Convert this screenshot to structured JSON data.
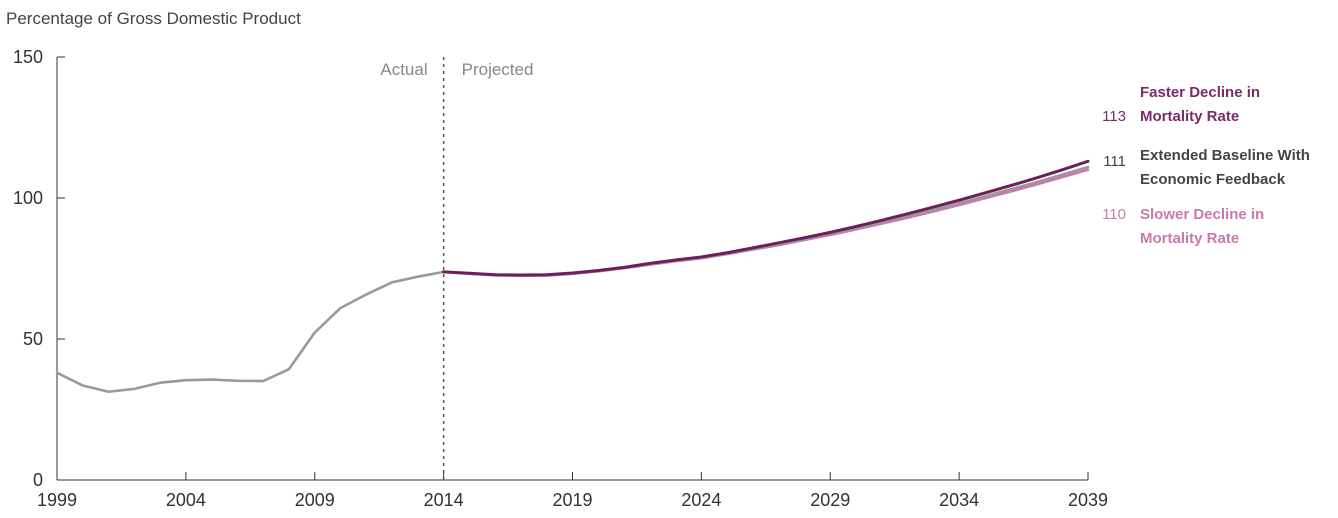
{
  "chart_data": {
    "type": "line",
    "ylabel": "Percentage of Gross Domestic Product",
    "ylim": [
      0,
      150
    ],
    "xlim": [
      1999,
      2039
    ],
    "yticks": [
      0,
      50,
      100,
      150
    ],
    "xticks": [
      1999,
      2004,
      2009,
      2014,
      2019,
      2024,
      2029,
      2034,
      2039
    ],
    "divider": {
      "x": 2014,
      "left_label": "Actual",
      "right_label": "Projected"
    },
    "grid": false,
    "series": [
      {
        "name": "",
        "color": "#9a9a9a",
        "x": [
          1999,
          2000,
          2001,
          2002,
          2003,
          2004,
          2005,
          2006,
          2007,
          2008,
          2009,
          2010,
          2011,
          2012,
          2013,
          2014
        ],
        "y": [
          38,
          33.5,
          31.3,
          32.3,
          34.5,
          35.4,
          35.6,
          35.2,
          35.1,
          39.3,
          52.3,
          61,
          65.8,
          70.1,
          72.1,
          73.8
        ]
      },
      {
        "name": "Faster Decline in Mortality Rate",
        "end_label": "113",
        "color": "#6e1e5b",
        "x": [
          2014,
          2015,
          2016,
          2017,
          2018,
          2019,
          2020,
          2021,
          2022,
          2023,
          2024,
          2025,
          2026,
          2027,
          2028,
          2029,
          2030,
          2031,
          2032,
          2033,
          2034,
          2035,
          2036,
          2037,
          2038,
          2039
        ],
        "y": [
          73.8,
          73.3,
          72.8,
          72.7,
          72.8,
          73.4,
          74.3,
          75.4,
          76.8,
          78.0,
          79.1,
          80.6,
          82.3,
          84.1,
          85.9,
          87.8,
          89.9,
          92.1,
          94.4,
          96.8,
          99.2,
          101.8,
          104.4,
          107.1,
          110.0,
          113
        ]
      },
      {
        "name": "Extended Baseline With Economic Feedback",
        "end_label": "111",
        "color": "#999999",
        "x": [
          2014,
          2015,
          2016,
          2017,
          2018,
          2019,
          2020,
          2021,
          2022,
          2023,
          2024,
          2025,
          2026,
          2027,
          2028,
          2029,
          2030,
          2031,
          2032,
          2033,
          2034,
          2035,
          2036,
          2037,
          2038,
          2039
        ],
        "y": [
          73.8,
          73.2,
          72.7,
          72.5,
          72.6,
          73.2,
          74.1,
          75.2,
          76.5,
          77.7,
          78.8,
          80.3,
          81.9,
          83.6,
          85.4,
          87.3,
          89.3,
          91.4,
          93.6,
          95.8,
          98.1,
          100.6,
          103.1,
          105.6,
          108.3,
          111
        ]
      },
      {
        "name": "Slower Decline in Mortality Rate",
        "end_label": "110",
        "color": "#c979ad",
        "x": [
          2014,
          2015,
          2016,
          2017,
          2018,
          2019,
          2020,
          2021,
          2022,
          2023,
          2024,
          2025,
          2026,
          2027,
          2028,
          2029,
          2030,
          2031,
          2032,
          2033,
          2034,
          2035,
          2036,
          2037,
          2038,
          2039
        ],
        "y": [
          73.8,
          73.1,
          72.6,
          72.4,
          72.5,
          73.1,
          74.0,
          75.1,
          76.4,
          77.6,
          78.6,
          80.1,
          81.7,
          83.3,
          85.1,
          86.9,
          88.9,
          90.9,
          93.0,
          95.2,
          97.5,
          99.9,
          102.3,
          104.8,
          107.4,
          110
        ]
      }
    ],
    "series_label_colors": [
      "#7b2a6a",
      "#444444",
      "#c979ad"
    ]
  }
}
